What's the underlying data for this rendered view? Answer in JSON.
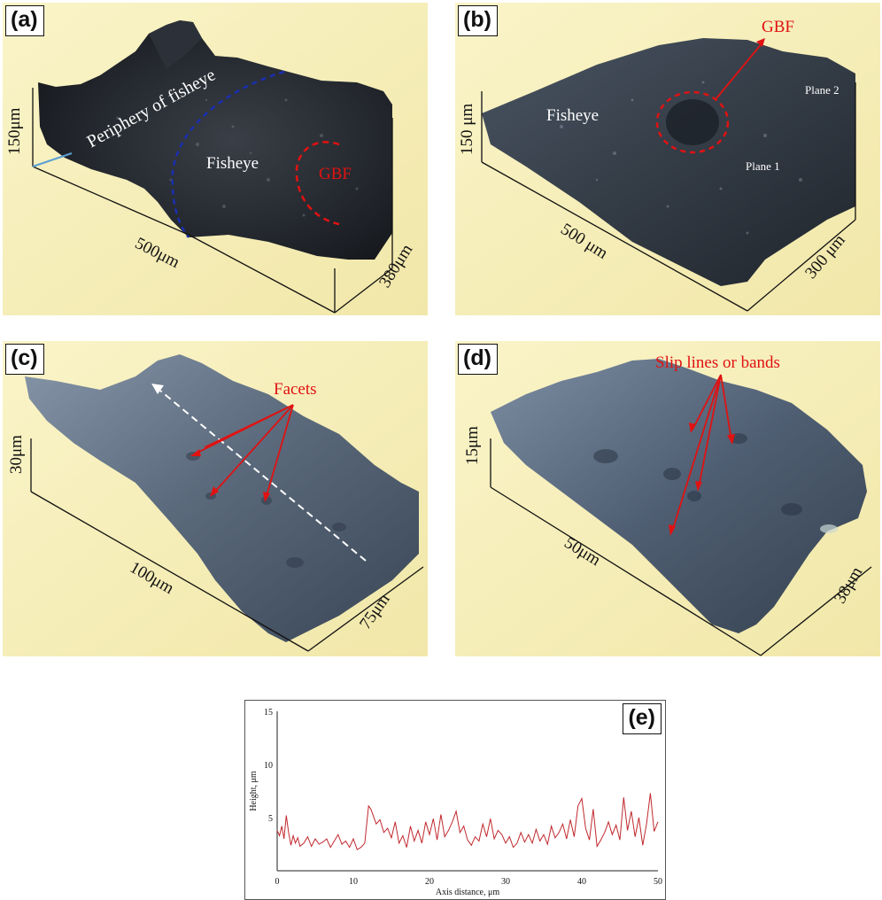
{
  "panels": {
    "a": {
      "tag": "(a)",
      "periphery_label": "Periphery of fisheye",
      "fisheye_label": "Fisheye",
      "gbf_label": "GBF",
      "z_axis": "150μm",
      "x_axis": "500μm",
      "y_axis": "380μm"
    },
    "b": {
      "tag": "(b)",
      "fisheye_label": "Fisheye",
      "gbf_label": "GBF",
      "plane1": "Plane 1",
      "plane2": "Plane 2",
      "z_axis": "150 μm",
      "x_axis": "500 μm",
      "y_axis": "300 μm"
    },
    "c": {
      "tag": "(c)",
      "facets_label": "Facets",
      "z_axis": "30μm",
      "x_axis": "100μm",
      "y_axis": "75μm"
    },
    "d": {
      "tag": "(d)",
      "slip_label": "Slip lines or bands",
      "z_axis": "15μm",
      "x_axis": "50μm",
      "y_axis": "38μm"
    },
    "e": {
      "tag": "(e)"
    }
  },
  "colors": {
    "panel_bg": "#f7f0bc",
    "annotation_red": "#e01212",
    "profile_line": "#c0282d",
    "boundary_blue": "#1a2fb0"
  },
  "chart_data": {
    "type": "line",
    "xlabel": "Axis distance, μm",
    "ylabel": "Height, μm",
    "xlim": [
      0,
      50
    ],
    "ylim": [
      0,
      15
    ],
    "xticks": [
      0,
      10,
      20,
      30,
      40,
      50
    ],
    "yticks": [
      5,
      10,
      15
    ],
    "series": [
      {
        "x": [
          0,
          0.3,
          0.6,
          0.9,
          1.2,
          1.5,
          1.8,
          2.1,
          2.4,
          2.7,
          3.0,
          3.5,
          4.0,
          4.5,
          5.0,
          5.5,
          6.0,
          6.5,
          7.0,
          7.5,
          8.0,
          8.5,
          9.0,
          9.5,
          10.0,
          10.5,
          11.0,
          11.5,
          12.0,
          12.3,
          12.6,
          13.0,
          13.5,
          14.0,
          14.5,
          15.0,
          15.5,
          16.0,
          16.5,
          17.0,
          17.5,
          18.0,
          18.5,
          19.0,
          19.5,
          20.0,
          20.5,
          21.0,
          21.5,
          22.0,
          22.5,
          23.0,
          23.5,
          24.0,
          24.5,
          25.0,
          25.5,
          26.0,
          26.5,
          27.0,
          27.5,
          28.0,
          28.5,
          29.0,
          29.5,
          30.0,
          30.5,
          31.0,
          31.5,
          32.0,
          32.5,
          33.0,
          33.5,
          34.0,
          34.5,
          35.0,
          35.5,
          36.0,
          36.5,
          37.0,
          37.5,
          38.0,
          38.5,
          39.0,
          39.5,
          40.0,
          40.5,
          41.0,
          41.5,
          42.0,
          42.5,
          43.0,
          43.5,
          44.0,
          44.5,
          45.0,
          45.5,
          46.0,
          46.5,
          47.0,
          47.5,
          48.0,
          48.5,
          49.0,
          49.5,
          50.0
        ],
        "values": [
          3.8,
          3.3,
          4.2,
          3.0,
          5.2,
          3.6,
          2.4,
          3.3,
          2.6,
          3.1,
          2.3,
          2.6,
          3.2,
          2.3,
          3.0,
          2.5,
          2.7,
          3.0,
          2.2,
          2.8,
          3.4,
          2.5,
          2.8,
          2.2,
          3.0,
          2.0,
          2.2,
          2.6,
          6.1,
          5.8,
          5.2,
          4.4,
          4.8,
          3.6,
          4.0,
          3.1,
          4.6,
          2.6,
          3.3,
          2.2,
          4.2,
          2.8,
          3.8,
          2.6,
          4.6,
          3.4,
          4.9,
          2.9,
          5.3,
          3.2,
          3.8,
          4.6,
          5.6,
          3.6,
          4.2,
          2.9,
          2.4,
          3.2,
          2.8,
          4.4,
          3.2,
          4.9,
          3.0,
          3.8,
          3.4,
          2.6,
          3.2,
          2.2,
          2.6,
          3.6,
          2.7,
          3.4,
          2.6,
          3.9,
          2.8,
          3.4,
          2.5,
          4.2,
          3.1,
          3.6,
          4.4,
          3.0,
          4.8,
          3.2,
          6.1,
          6.8,
          4.0,
          2.9,
          5.8,
          2.3,
          2.9,
          3.6,
          4.6,
          3.4,
          4.3,
          2.9,
          6.9,
          3.8,
          5.6,
          3.2,
          5.0,
          2.4,
          4.4,
          7.3,
          3.7,
          4.6
        ]
      }
    ]
  }
}
